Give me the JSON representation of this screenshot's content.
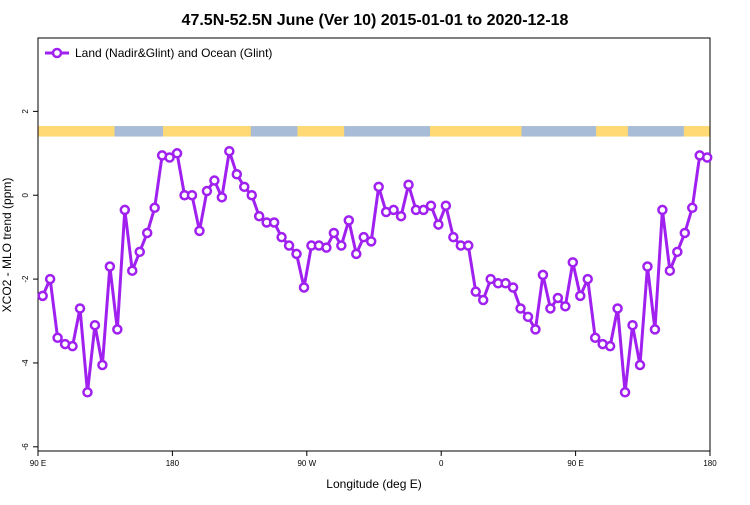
{
  "chart_data": {
    "type": "line",
    "title": "47.5N-52.5N June (Ver 10)   2015-01-01 to 2020-12-18",
    "xlabel": "Longitude (deg E)",
    "ylabel": "XCO2 - MLO trend (ppm)",
    "x_ticks": [
      "90 E",
      "180",
      "90 W",
      "0",
      "90 E",
      "180"
    ],
    "y_ticks": [
      "2",
      "0",
      "-2",
      "-4",
      "-6"
    ],
    "y_tick_values": [
      2,
      0,
      -2,
      -4,
      -6
    ],
    "xlim": [
      90,
      450
    ],
    "ylim": [
      -6.1,
      3.75
    ],
    "grid": false,
    "legend_position": "top-left",
    "series": [
      {
        "name": "Land (Nadir&Glint) and Ocean (Glint)",
        "color": "#a020f0",
        "marker": "open-circle",
        "x": [
          92.5,
          96.5,
          100.5,
          104.5,
          108.5,
          112.5,
          116.5,
          120.5,
          124.5,
          128.5,
          132.5,
          136.5,
          140.5,
          144.5,
          148.5,
          152.5,
          156.5,
          160.5,
          164.5,
          168.5,
          172.5,
          176.5,
          180.5,
          184.5,
          188.5,
          192.5,
          196.5,
          200.5,
          204.5,
          208.5,
          212.5,
          216.5,
          220.5,
          224.5,
          228.5,
          232.5,
          236.5,
          240.5,
          244.5,
          248.5,
          252.5,
          256.5,
          260.5,
          264.5,
          268.5,
          272.5,
          276.5,
          280.5,
          284.5,
          288.5,
          292.5,
          296.5,
          300.5,
          304.5,
          308.5,
          312.5,
          316.5,
          320.5,
          324.5,
          328.5,
          332.5,
          336.5,
          340.5,
          344.5,
          348.5,
          352.5,
          356.5,
          360.5,
          364.5,
          368.5,
          372.5,
          376.5,
          380.5,
          384.5,
          388.5,
          392.5,
          396.5,
          400.5,
          404.5,
          408.5,
          412.5,
          416.5,
          420.5,
          424.5,
          428.5,
          432.5,
          436.5,
          440.5,
          444.5,
          448.5
        ],
        "y": [
          -2.4,
          -2.0,
          -3.4,
          -3.55,
          -3.6,
          -2.7,
          -4.7,
          -3.1,
          -4.05,
          -1.7,
          -3.2,
          -0.35,
          -1.8,
          -1.35,
          -0.9,
          -0.3,
          0.95,
          0.9,
          1.0,
          0.0,
          0.0,
          -0.85,
          0.1,
          0.35,
          -0.05,
          1.05,
          0.5,
          0.2,
          0.0,
          -0.5,
          -0.65,
          -0.65,
          -1.0,
          -1.2,
          -1.4,
          -2.2,
          -1.2,
          -1.2,
          -1.25,
          -0.9,
          -1.2,
          -0.6,
          -1.4,
          -1.0,
          -1.1,
          0.2,
          -0.4,
          -0.35,
          -0.5,
          0.25,
          -0.35,
          -0.35,
          -0.25,
          -0.7,
          -0.25,
          -1.0,
          -1.2,
          -1.2,
          -2.3,
          -2.5,
          -2.0,
          -2.1,
          -2.1,
          -2.2,
          -2.7,
          -2.9,
          -3.2,
          -1.9,
          -2.7,
          -2.45,
          -2.65,
          -1.6,
          -2.4,
          -2.0,
          -3.4,
          -3.55,
          -3.6,
          -2.7,
          -4.7,
          -3.1,
          -4.05,
          -1.7,
          -3.2,
          -0.35,
          -1.8,
          -1.35,
          -0.9,
          -0.3,
          0.95,
          0.9
        ]
      }
    ],
    "surface_band": {
      "colors": {
        "ocean": "#ffd973",
        "land": "#a8bcd8"
      },
      "land_intervals": [
        [
          131,
          157
        ],
        [
          204,
          229
        ],
        [
          254,
          300
        ],
        [
          349,
          389
        ],
        [
          406,
          436
        ]
      ],
      "y_range": [
        1.4,
        1.65
      ]
    }
  }
}
